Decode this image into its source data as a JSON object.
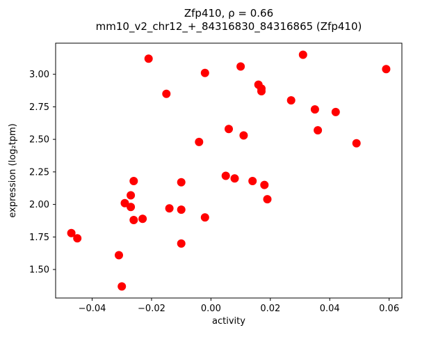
{
  "chart_data": {
    "type": "scatter",
    "title": "Zfp410, ρ = 0.66",
    "subtitle": "mm10_v2_chr12_+_84316830_84316865 (Zfp410)",
    "xlabel": "activity",
    "ylabel": "expression (log₂tpm)",
    "xlim": [
      -0.0523,
      0.0643
    ],
    "ylim": [
      1.281,
      3.239
    ],
    "grid": false,
    "legend": null,
    "marker_color": "#ff0000",
    "marker_radius": 6,
    "xticks": [
      -0.04,
      -0.02,
      0.0,
      0.02,
      0.04,
      0.06
    ],
    "xtick_labels": [
      "−0.04",
      "−0.02",
      "0.00",
      "0.02",
      "0.04",
      "0.06"
    ],
    "yticks": [
      1.5,
      1.75,
      2.0,
      2.25,
      2.5,
      2.75,
      3.0
    ],
    "ytick_labels": [
      "1.50",
      "1.75",
      "2.00",
      "2.25",
      "2.50",
      "2.75",
      "3.00"
    ],
    "points": [
      [
        -0.047,
        1.78
      ],
      [
        -0.045,
        1.74
      ],
      [
        -0.031,
        1.61
      ],
      [
        -0.03,
        1.37
      ],
      [
        -0.029,
        2.01
      ],
      [
        -0.027,
        2.07
      ],
      [
        -0.027,
        1.98
      ],
      [
        -0.026,
        2.18
      ],
      [
        -0.026,
        1.88
      ],
      [
        -0.023,
        1.89
      ],
      [
        -0.021,
        3.12
      ],
      [
        -0.015,
        2.85
      ],
      [
        -0.014,
        1.97
      ],
      [
        -0.01,
        2.17
      ],
      [
        -0.01,
        1.96
      ],
      [
        -0.01,
        1.7
      ],
      [
        -0.004,
        2.48
      ],
      [
        -0.002,
        3.01
      ],
      [
        -0.002,
        1.9
      ],
      [
        0.005,
        2.22
      ],
      [
        0.006,
        2.58
      ],
      [
        0.008,
        2.2
      ],
      [
        0.01,
        3.06
      ],
      [
        0.011,
        2.53
      ],
      [
        0.014,
        2.18
      ],
      [
        0.016,
        2.92
      ],
      [
        0.017,
        2.89
      ],
      [
        0.017,
        2.87
      ],
      [
        0.018,
        2.15
      ],
      [
        0.019,
        2.04
      ],
      [
        0.027,
        2.8
      ],
      [
        0.031,
        3.15
      ],
      [
        0.035,
        2.73
      ],
      [
        0.036,
        2.57
      ],
      [
        0.042,
        2.71
      ],
      [
        0.049,
        2.47
      ],
      [
        0.059,
        3.04
      ]
    ]
  }
}
